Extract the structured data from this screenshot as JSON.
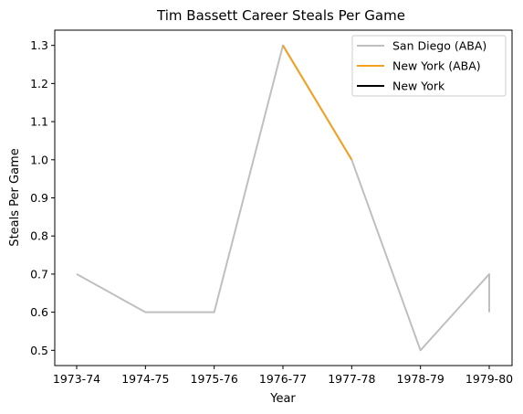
{
  "chart_data": {
    "type": "line",
    "title": "Tim Bassett Career Steals Per Game",
    "xlabel": "Year",
    "ylabel": "Steals Per Game",
    "categories": [
      "1973-74",
      "1974-75",
      "1975-76",
      "1976-77",
      "1977-78",
      "1978-79",
      "1979-80"
    ],
    "ylim": [
      0.46,
      1.34
    ],
    "yticks": [
      0.5,
      0.6,
      0.7,
      0.8,
      0.9,
      1.0,
      1.1,
      1.2,
      1.3
    ],
    "ytick_labels": [
      "0.5",
      "0.6",
      "0.7",
      "0.8",
      "0.9",
      "1.0",
      "1.1",
      "1.2",
      "1.3"
    ],
    "grid": false,
    "legend_position": "top-right",
    "series": [
      {
        "name": "San Diego (ABA)",
        "color": "#bfbfbf",
        "points": [
          {
            "x": "1973-74",
            "y": 0.7
          },
          {
            "x": "1974-75",
            "y": 0.6
          },
          {
            "x": "1975-76",
            "y": 0.6
          },
          {
            "x": "1976-77",
            "y": 1.3
          },
          {
            "x": "1977-78",
            "y": 1.0
          },
          {
            "x": "1978-79",
            "y": 0.5
          },
          {
            "x": "1979-80",
            "y": 0.7
          },
          {
            "x": "1979-80",
            "y": 0.6
          }
        ]
      },
      {
        "name": "New York (ABA)",
        "color": "#f4a020",
        "points": [
          {
            "x": "1976-77",
            "y": 1.3
          },
          {
            "x": "1977-78",
            "y": 1.0
          }
        ]
      },
      {
        "name": "New York",
        "color": "#000000",
        "points": []
      }
    ]
  }
}
